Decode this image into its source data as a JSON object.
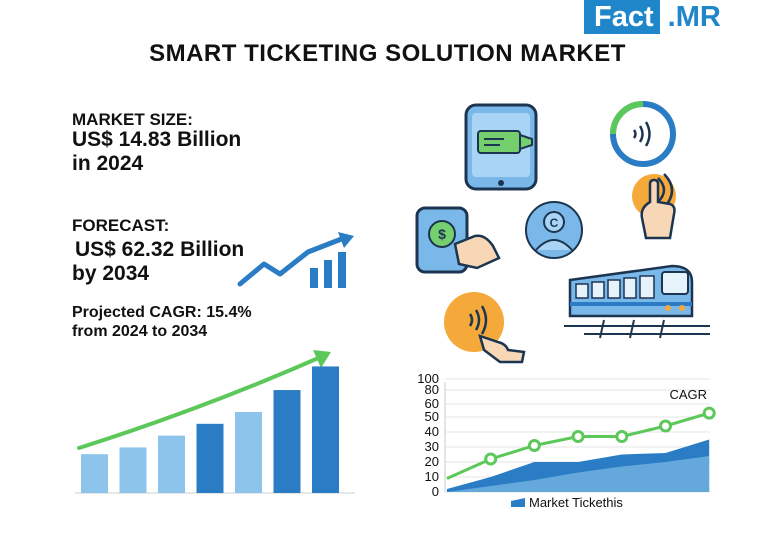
{
  "brand": {
    "part1": "Fact",
    "part2": ".MR"
  },
  "title": "SMART TICKETING SOLUTION MARKET",
  "market_size": {
    "label": "MARKET SIZE:",
    "line1": "US$ 14.83 Billion",
    "line2": "in 2024"
  },
  "forecast": {
    "label": "FORECAST:",
    "line1": "US$ 62.32 Billion",
    "line2": "by 2034"
  },
  "cagr": {
    "line1": "Projected CAGR: 15.4%",
    "line2": "from 2024 to 2034"
  },
  "icons": [
    "smartphone-ticket-icon",
    "contactless-icon",
    "tap-hand-icon",
    "mobile-payment-icon",
    "user-profile-icon",
    "train-icon",
    "nfc-tap-icon",
    "growth-arrow-icon"
  ],
  "colors": {
    "brand_blue": "#1f86c9",
    "light_blue": "#8cc4ec",
    "dark_blue": "#2a7dc4",
    "green": "#5cc85a",
    "orange": "#f4a93a"
  },
  "chart_data": [
    {
      "type": "bar",
      "values": [
        23,
        27,
        34,
        41,
        48,
        61,
        75
      ],
      "trend_arrow": true
    },
    {
      "type": "line",
      "title": "",
      "yticks": [
        0,
        10,
        20,
        30,
        40,
        50,
        60,
        80,
        100
      ],
      "series": [
        {
          "name": "CAGR",
          "style": "line-markers",
          "x": [
            0,
            1,
            2,
            3,
            4,
            5,
            6
          ],
          "values": [
            9,
            22,
            31,
            37,
            37,
            44,
            53
          ]
        },
        {
          "name": "Market Tickethis",
          "style": "area",
          "x": [
            0,
            1,
            2,
            3,
            4,
            5,
            6
          ],
          "values": [
            2,
            10,
            20,
            20,
            25,
            26,
            35
          ]
        }
      ],
      "legend": {
        "placement": "bottom",
        "label": "Market Tickethis"
      },
      "annotation": "CAGR"
    }
  ]
}
